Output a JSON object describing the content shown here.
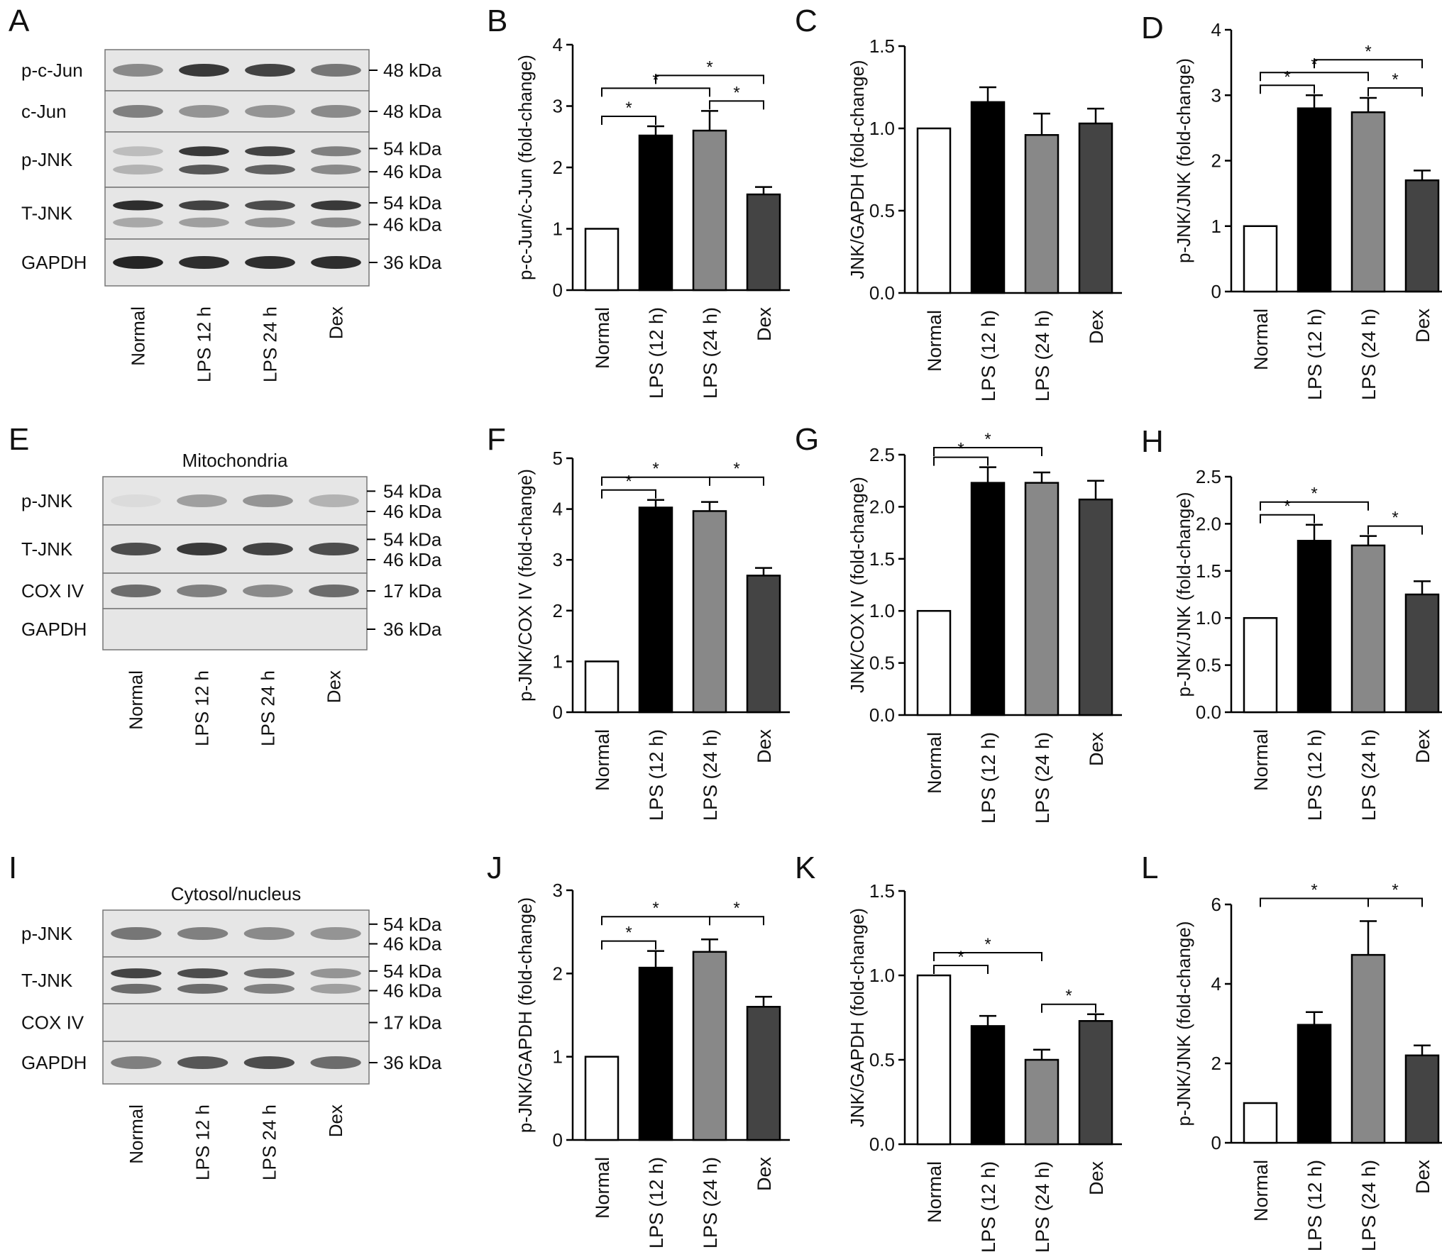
{
  "categories": [
    "Normal",
    "LPS (12 h)",
    "LPS (24 h)",
    "Dex"
  ],
  "colors": {
    "bar_fills": [
      "#ffffff",
      "#000000",
      "#888888",
      "#444444"
    ],
    "axis": "#000000",
    "blot_background": "#e6e6e6",
    "band": "#1a1a1a"
  },
  "blots": [
    {
      "letter": "A",
      "title": "",
      "lanes": [
        "Normal",
        "LPS 12 h",
        "LPS 24 h",
        "Dex"
      ],
      "rows": [
        {
          "label": "p-c-Jun",
          "kda": [
            "48 kDa"
          ],
          "bands": [
            [
              0.45,
              0.85,
              0.8,
              0.55
            ]
          ]
        },
        {
          "label": "c-Jun",
          "kda": [
            "48 kDa"
          ],
          "bands": [
            [
              0.5,
              0.4,
              0.4,
              0.45
            ]
          ]
        },
        {
          "label": "p-JNK",
          "kda": [
            "54 kDa",
            "46 kDa"
          ],
          "bands": [
            [
              0.2,
              0.85,
              0.8,
              0.5
            ],
            [
              0.25,
              0.7,
              0.65,
              0.45
            ]
          ]
        },
        {
          "label": "T-JNK",
          "kda": [
            "54 kDa",
            "46 kDa"
          ],
          "bands": [
            [
              0.9,
              0.8,
              0.75,
              0.85
            ],
            [
              0.3,
              0.35,
              0.4,
              0.45
            ]
          ]
        },
        {
          "label": "GAPDH",
          "kda": [
            "36 kDa"
          ],
          "bands": [
            [
              0.95,
              0.9,
              0.9,
              0.9
            ]
          ]
        }
      ]
    },
    {
      "letter": "E",
      "title": "Mitochondria",
      "lanes": [
        "Normal",
        "LPS 12 h",
        "LPS 24 h",
        "Dex"
      ],
      "rows": [
        {
          "label": "p-JNK",
          "kda": [
            "54 kDa",
            "46 kDa"
          ],
          "bands": [
            [
              0.05,
              0.35,
              0.4,
              0.25
            ]
          ]
        },
        {
          "label": "T-JNK",
          "kda": [
            "54 kDa",
            "46 kDa"
          ],
          "bands": [
            [
              0.75,
              0.85,
              0.8,
              0.75
            ]
          ]
        },
        {
          "label": "COX IV",
          "kda": [
            "17 kDa"
          ],
          "bands": [
            [
              0.6,
              0.5,
              0.45,
              0.6
            ]
          ]
        },
        {
          "label": "GAPDH",
          "kda": [
            "36 kDa"
          ],
          "bands": [
            [
              0.0,
              0.0,
              0.0,
              0.0
            ]
          ]
        }
      ]
    },
    {
      "letter": "I",
      "title": "Cytosol/nucleus",
      "lanes": [
        "Normal",
        "LPS 12 h",
        "LPS 24 h",
        "Dex"
      ],
      "rows": [
        {
          "label": "p-JNK",
          "kda": [
            "54 kDa",
            "46 kDa"
          ],
          "bands": [
            [
              0.55,
              0.5,
              0.45,
              0.4
            ]
          ]
        },
        {
          "label": "T-JNK",
          "kda": [
            "54 kDa",
            "46 kDa"
          ],
          "bands": [
            [
              0.8,
              0.75,
              0.6,
              0.4
            ],
            [
              0.6,
              0.6,
              0.5,
              0.35
            ]
          ]
        },
        {
          "label": "COX IV",
          "kda": [
            "17 kDa"
          ],
          "bands": [
            [
              0.0,
              0.0,
              0.0,
              0.0
            ]
          ]
        },
        {
          "label": "GAPDH",
          "kda": [
            "36 kDa"
          ],
          "bands": [
            [
              0.5,
              0.7,
              0.75,
              0.6
            ]
          ]
        }
      ]
    }
  ],
  "chart_data": [
    {
      "letter": "B",
      "type": "bar",
      "ylabel": "p-c-Jun/c-Jun (fold-change)",
      "ylim": [
        0,
        4
      ],
      "ticks": [
        "0",
        "1",
        "2",
        "3",
        "4"
      ],
      "values": [
        1.0,
        2.52,
        2.6,
        1.56
      ],
      "errors": [
        0,
        0.15,
        0.32,
        0.12
      ],
      "sig": [
        {
          "a": 0,
          "b": 1,
          "level": 1
        },
        {
          "a": 0,
          "b": 2,
          "level": 2
        },
        {
          "a": 2,
          "b": 3,
          "level": 1
        },
        {
          "a": 1,
          "b": 3,
          "level": 3
        }
      ]
    },
    {
      "letter": "C",
      "type": "bar",
      "ylabel": "JNK/GAPDH (fold-change)",
      "ylim": [
        0,
        1.5
      ],
      "ticks": [
        "0.0",
        "0.5",
        "1.0",
        "1.5"
      ],
      "values": [
        1.0,
        1.16,
        0.96,
        1.03
      ],
      "errors": [
        0,
        0.09,
        0.13,
        0.09
      ],
      "sig": []
    },
    {
      "letter": "D",
      "type": "bar",
      "ylabel": "p-JNK/JNK (fold-change)",
      "ylim": [
        0,
        4
      ],
      "ticks": [
        "0",
        "1",
        "2",
        "3",
        "4"
      ],
      "values": [
        1.0,
        2.8,
        2.74,
        1.7
      ],
      "errors": [
        0,
        0.2,
        0.22,
        0.15
      ],
      "sig": [
        {
          "a": 0,
          "b": 1,
          "level": 1
        },
        {
          "a": 0,
          "b": 2,
          "level": 2
        },
        {
          "a": 2,
          "b": 3,
          "level": 1
        },
        {
          "a": 1,
          "b": 3,
          "level": 3
        }
      ]
    },
    {
      "letter": "F",
      "type": "bar",
      "ylabel": "p-JNK/COX IV (fold-change)",
      "ylim": [
        0,
        5
      ],
      "ticks": [
        "0",
        "1",
        "2",
        "3",
        "4",
        "5"
      ],
      "values": [
        1.0,
        4.03,
        3.96,
        2.69
      ],
      "errors": [
        0,
        0.15,
        0.18,
        0.15
      ],
      "sig": [
        {
          "a": 0,
          "b": 1,
          "level": 1
        },
        {
          "a": 0,
          "b": 2,
          "level": 2
        },
        {
          "a": 2,
          "b": 3,
          "level": 2
        }
      ]
    },
    {
      "letter": "G",
      "type": "bar",
      "ylabel": "JNK/COX IV (fold-change)",
      "ylim": [
        0,
        2.5
      ],
      "ticks": [
        "0.0",
        "0.5",
        "1.0",
        "1.5",
        "2.0",
        "2.5"
      ],
      "values": [
        1.0,
        2.23,
        2.23,
        2.07
      ],
      "errors": [
        0,
        0.15,
        0.1,
        0.18
      ],
      "sig": [
        {
          "a": 0,
          "b": 1,
          "level": 1
        },
        {
          "a": 0,
          "b": 2,
          "level": 2
        }
      ]
    },
    {
      "letter": "H",
      "type": "bar",
      "ylabel": "p-JNK/JNK (fold-change)",
      "ylim": [
        0,
        2.5
      ],
      "ticks": [
        "0.0",
        "0.5",
        "1.0",
        "1.5",
        "2.0",
        "2.5"
      ],
      "values": [
        1.0,
        1.82,
        1.77,
        1.25
      ],
      "errors": [
        0,
        0.17,
        0.1,
        0.14
      ],
      "sig": [
        {
          "a": 0,
          "b": 1,
          "level": 1
        },
        {
          "a": 0,
          "b": 2,
          "level": 2
        },
        {
          "a": 2,
          "b": 3,
          "level": 1
        }
      ]
    },
    {
      "letter": "J",
      "type": "bar",
      "ylabel": "p-JNK/GAPDH (fold-change)",
      "ylim": [
        0,
        3
      ],
      "ticks": [
        "0",
        "1",
        "2",
        "3"
      ],
      "values": [
        1.0,
        2.07,
        2.26,
        1.6
      ],
      "errors": [
        0,
        0.2,
        0.15,
        0.12
      ],
      "sig": [
        {
          "a": 0,
          "b": 1,
          "level": 1
        },
        {
          "a": 0,
          "b": 2,
          "level": 2
        },
        {
          "a": 2,
          "b": 3,
          "level": 2
        }
      ]
    },
    {
      "letter": "K",
      "type": "bar",
      "ylabel": "JNK/GAPDH (fold-change)",
      "ylim": [
        0,
        1.5
      ],
      "ticks": [
        "0.0",
        "0.5",
        "1.0",
        "1.5"
      ],
      "values": [
        1.0,
        0.7,
        0.5,
        0.73
      ],
      "errors": [
        0,
        0.06,
        0.06,
        0.04
      ],
      "sig": [
        {
          "a": 0,
          "b": 1,
          "level": 1
        },
        {
          "a": 0,
          "b": 2,
          "level": 2
        },
        {
          "a": 2,
          "b": 3,
          "level": 1
        }
      ]
    },
    {
      "letter": "L",
      "type": "bar",
      "ylabel": "p-JNK/JNK (fold-change)",
      "ylim": [
        0,
        6
      ],
      "ticks": [
        "0",
        "2",
        "4",
        "6"
      ],
      "values": [
        1.0,
        2.97,
        4.73,
        2.2
      ],
      "errors": [
        0,
        0.32,
        0.85,
        0.25
      ],
      "sig": [
        {
          "a": 0,
          "b": 2,
          "level": 2
        },
        {
          "a": 2,
          "b": 3,
          "level": 2
        }
      ]
    }
  ]
}
